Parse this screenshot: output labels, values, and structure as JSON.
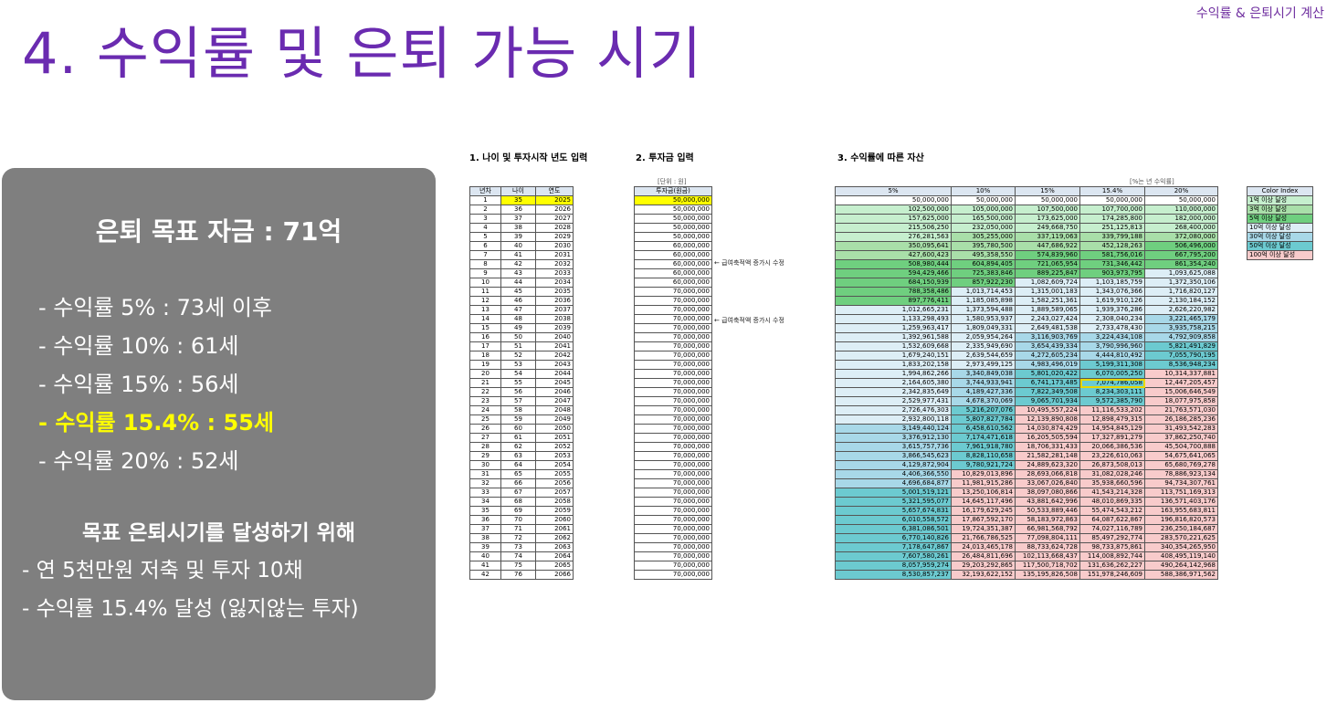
{
  "header": {
    "title": "4. 수익률 및 은퇴 가능 시기",
    "top_label": "수익률 & 은퇴시기 계산"
  },
  "summary": {
    "goal": "은퇴 목표 자금 : 71억",
    "items": [
      "- 수익률    5% : 73세 이후",
      "- 수익률 10% : 61세",
      "- 수익률 15% : 56세",
      "- 수익률 15.4% : 55세",
      "- 수익률 20% : 52세"
    ],
    "highlight_index": 3,
    "sub_title": "목표 은퇴시기를 달성하기 위해",
    "notes": [
      "- 연 5천만원 저축 및 투자 10채",
      "- 수익률 15.4% 달성 (잃지않는 투자)"
    ]
  },
  "section1": {
    "title": "1. 나이 및 투자시작 년도 입력",
    "headers": [
      "년차",
      "나이",
      "연도"
    ]
  },
  "section2": {
    "title": "2. 투자금 입력",
    "unit": "[단위 : 원]",
    "header": "투자금(원금)",
    "notes": [
      "← 급여축적액 증가시 수정",
      "← 급여축적액 증가시 수정"
    ]
  },
  "section3": {
    "title": "3. 수익률에 따른 자산",
    "unit": "[%는 년 수익률]",
    "headers": [
      "5%",
      "10%",
      "15%",
      "15.4%",
      "20%"
    ]
  },
  "color_index": {
    "title": "Color Index",
    "items": [
      "1억 이상 달성",
      "3억 이상 달성",
      "5억 이상 달성",
      "10억 이상 달성",
      "30억 이상 달성",
      "50억 이상 달성",
      "100억 이상 달성"
    ]
  },
  "colors": {
    "title": "#6a2bb0",
    "yellow": "#ffff00",
    "g1": "#c6efce",
    "g3": "#a9dfa9",
    "g5": "#6fcf7f",
    "b10": "#ddeef6",
    "b30": "#a8d8e8",
    "b50": "#6ccad0",
    "p100": "#f8cbcb"
  },
  "rows": [
    [
      "1",
      "35",
      "2025",
      "50,000,000",
      "50,000,000",
      "50,000,000",
      "50,000,000",
      "50,000,000",
      "50,000,000"
    ],
    [
      "2",
      "36",
      "2026",
      "50,000,000",
      "102,500,000",
      "105,000,000",
      "107,500,000",
      "107,700,000",
      "110,000,000"
    ],
    [
      "3",
      "37",
      "2027",
      "50,000,000",
      "157,625,000",
      "165,500,000",
      "173,625,000",
      "174,285,800",
      "182,000,000"
    ],
    [
      "4",
      "38",
      "2028",
      "50,000,000",
      "215,506,250",
      "232,050,000",
      "249,668,750",
      "251,125,813",
      "268,400,000"
    ],
    [
      "5",
      "39",
      "2029",
      "50,000,000",
      "276,281,563",
      "305,255,000",
      "337,119,063",
      "339,799,188",
      "372,080,000"
    ],
    [
      "6",
      "40",
      "2030",
      "60,000,000",
      "350,095,641",
      "395,780,500",
      "447,686,922",
      "452,128,263",
      "506,496,000"
    ],
    [
      "7",
      "41",
      "2031",
      "60,000,000",
      "427,600,423",
      "495,358,550",
      "574,839,960",
      "581,756,016",
      "667,795,200"
    ],
    [
      "8",
      "42",
      "2032",
      "60,000,000",
      "508,980,444",
      "604,894,405",
      "721,065,954",
      "731,346,442",
      "861,354,240"
    ],
    [
      "9",
      "43",
      "2033",
      "60,000,000",
      "594,429,466",
      "725,383,846",
      "889,225,847",
      "903,973,795",
      "1,093,625,088"
    ],
    [
      "10",
      "44",
      "2034",
      "60,000,000",
      "684,150,939",
      "857,922,230",
      "1,082,609,724",
      "1,103,185,759",
      "1,372,350,106"
    ],
    [
      "11",
      "45",
      "2035",
      "70,000,000",
      "788,358,486",
      "1,013,714,453",
      "1,315,001,183",
      "1,343,076,366",
      "1,716,820,127"
    ],
    [
      "12",
      "46",
      "2036",
      "70,000,000",
      "897,776,411",
      "1,185,085,898",
      "1,582,251,361",
      "1,619,910,126",
      "2,130,184,152"
    ],
    [
      "13",
      "47",
      "2037",
      "70,000,000",
      "1,012,665,231",
      "1,373,594,488",
      "1,889,589,065",
      "1,939,376,286",
      "2,626,220,982"
    ],
    [
      "14",
      "48",
      "2038",
      "70,000,000",
      "1,133,298,493",
      "1,580,953,937",
      "2,243,027,424",
      "2,308,040,234",
      "3,221,465,179"
    ],
    [
      "15",
      "49",
      "2039",
      "70,000,000",
      "1,259,963,417",
      "1,809,049,331",
      "2,649,481,538",
      "2,733,478,430",
      "3,935,758,215"
    ],
    [
      "16",
      "50",
      "2040",
      "70,000,000",
      "1,392,961,588",
      "2,059,954,264",
      "3,116,903,769",
      "3,224,434,108",
      "4,792,909,858"
    ],
    [
      "17",
      "51",
      "2041",
      "70,000,000",
      "1,532,609,668",
      "2,335,949,690",
      "3,654,439,334",
      "3,790,996,960",
      "5,821,491,829"
    ],
    [
      "18",
      "52",
      "2042",
      "70,000,000",
      "1,679,240,151",
      "2,639,544,659",
      "4,272,605,234",
      "4,444,810,492",
      "7,055,790,195"
    ],
    [
      "19",
      "53",
      "2043",
      "70,000,000",
      "1,833,202,158",
      "2,973,499,125",
      "4,983,496,019",
      "5,199,311,308",
      "8,536,948,234"
    ],
    [
      "20",
      "54",
      "2044",
      "70,000,000",
      "1,994,862,266",
      "3,340,849,038",
      "5,801,020,422",
      "6,070,005,250",
      "10,314,337,881"
    ],
    [
      "21",
      "55",
      "2045",
      "70,000,000",
      "2,164,605,380",
      "3,744,933,941",
      "6,741,173,485",
      "7,074,786,058",
      "12,447,205,457"
    ],
    [
      "22",
      "56",
      "2046",
      "70,000,000",
      "2,342,835,649",
      "4,189,427,336",
      "7,822,349,508",
      "8,234,303,111",
      "15,006,646,549"
    ],
    [
      "23",
      "57",
      "2047",
      "70,000,000",
      "2,529,977,431",
      "4,678,370,069",
      "9,065,701,934",
      "9,572,385,790",
      "18,077,975,858"
    ],
    [
      "24",
      "58",
      "2048",
      "70,000,000",
      "2,726,476,303",
      "5,216,207,076",
      "10,495,557,224",
      "11,116,533,202",
      "21,763,571,030"
    ],
    [
      "25",
      "59",
      "2049",
      "70,000,000",
      "2,932,800,118",
      "5,807,827,784",
      "12,139,890,808",
      "12,898,479,315",
      "26,186,285,236"
    ],
    [
      "26",
      "60",
      "2050",
      "70,000,000",
      "3,149,440,124",
      "6,458,610,562",
      "14,030,874,429",
      "14,954,845,129",
      "31,493,542,283"
    ],
    [
      "27",
      "61",
      "2051",
      "70,000,000",
      "3,376,912,130",
      "7,174,471,618",
      "16,205,505,594",
      "17,327,891,279",
      "37,862,250,740"
    ],
    [
      "28",
      "62",
      "2052",
      "70,000,000",
      "3,615,757,736",
      "7,961,918,780",
      "18,706,331,433",
      "20,066,386,536",
      "45,504,700,888"
    ],
    [
      "29",
      "63",
      "2053",
      "70,000,000",
      "3,866,545,623",
      "8,828,110,658",
      "21,582,281,148",
      "23,226,610,063",
      "54,675,641,065"
    ],
    [
      "30",
      "64",
      "2054",
      "70,000,000",
      "4,129,872,904",
      "9,780,921,724",
      "24,889,623,320",
      "26,873,508,013",
      "65,680,769,278"
    ],
    [
      "31",
      "65",
      "2055",
      "70,000,000",
      "4,406,366,550",
      "10,829,013,896",
      "28,693,066,818",
      "31,082,028,246",
      "78,886,923,134"
    ],
    [
      "32",
      "66",
      "2056",
      "70,000,000",
      "4,696,684,877",
      "11,981,915,286",
      "33,067,026,840",
      "35,938,660,596",
      "94,734,307,761"
    ],
    [
      "33",
      "67",
      "2057",
      "70,000,000",
      "5,001,519,121",
      "13,250,106,814",
      "38,097,080,866",
      "41,543,214,328",
      "113,751,169,313"
    ],
    [
      "34",
      "68",
      "2058",
      "70,000,000",
      "5,321,595,077",
      "14,645,117,496",
      "43,881,642,996",
      "48,010,869,335",
      "136,571,403,176"
    ],
    [
      "35",
      "69",
      "2059",
      "70,000,000",
      "5,657,674,831",
      "16,179,629,245",
      "50,533,889,446",
      "55,474,543,212",
      "163,955,683,811"
    ],
    [
      "36",
      "70",
      "2060",
      "70,000,000",
      "6,010,558,572",
      "17,867,592,170",
      "58,183,972,863",
      "64,087,622,867",
      "196,816,820,573"
    ],
    [
      "37",
      "71",
      "2061",
      "70,000,000",
      "6,381,086,501",
      "19,724,351,387",
      "66,981,568,792",
      "74,027,116,789",
      "236,250,184,687"
    ],
    [
      "38",
      "72",
      "2062",
      "70,000,000",
      "6,770,140,826",
      "21,766,786,525",
      "77,098,804,111",
      "85,497,292,774",
      "283,570,221,625"
    ],
    [
      "39",
      "73",
      "2063",
      "70,000,000",
      "7,178,647,867",
      "24,013,465,178",
      "88,733,624,728",
      "98,733,875,861",
      "340,354,265,950"
    ],
    [
      "40",
      "74",
      "2064",
      "70,000,000",
      "7,607,580,261",
      "26,484,811,696",
      "102,113,668,437",
      "114,008,892,744",
      "408,495,119,140"
    ],
    [
      "41",
      "75",
      "2065",
      "70,000,000",
      "8,057,959,274",
      "29,203,292,865",
      "117,500,718,702",
      "131,636,262,227",
      "490,264,142,968"
    ],
    [
      "42",
      "76",
      "2066",
      "70,000,000",
      "8,530,857,237",
      "32,193,622,152",
      "135,195,826,508",
      "151,978,246,609",
      "588,386,971,562"
    ]
  ]
}
